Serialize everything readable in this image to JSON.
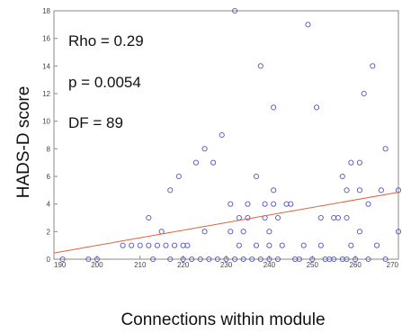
{
  "chart_data": {
    "type": "scatter",
    "xlabel": "Connections within module",
    "ylabel": "HADS-D  score",
    "xlim": [
      190,
      270
    ],
    "ylim": [
      0,
      18
    ],
    "xticks": [
      190,
      200,
      210,
      220,
      230,
      240,
      250,
      260,
      270
    ],
    "yticks": [
      0,
      2,
      4,
      6,
      8,
      10,
      12,
      14,
      16,
      18
    ],
    "grid": false,
    "annotations": [
      "Rho = 0.29",
      "p = 0.0054",
      "DF = 89"
    ],
    "points": [
      {
        "x": 192,
        "y": 0
      },
      {
        "x": 198,
        "y": 0
      },
      {
        "x": 200,
        "y": 0
      },
      {
        "x": 206,
        "y": 1
      },
      {
        "x": 208,
        "y": 1
      },
      {
        "x": 210,
        "y": 1
      },
      {
        "x": 212,
        "y": 1
      },
      {
        "x": 212,
        "y": 3
      },
      {
        "x": 213,
        "y": 0
      },
      {
        "x": 214,
        "y": 1
      },
      {
        "x": 215,
        "y": 2
      },
      {
        "x": 216,
        "y": 1
      },
      {
        "x": 217,
        "y": 5
      },
      {
        "x": 217,
        "y": 0
      },
      {
        "x": 218,
        "y": 1
      },
      {
        "x": 219,
        "y": 6
      },
      {
        "x": 220,
        "y": 1
      },
      {
        "x": 220,
        "y": 0
      },
      {
        "x": 221,
        "y": 1
      },
      {
        "x": 222,
        "y": 0
      },
      {
        "x": 223,
        "y": 7
      },
      {
        "x": 224,
        "y": 0
      },
      {
        "x": 225,
        "y": 2
      },
      {
        "x": 225,
        "y": 8
      },
      {
        "x": 226,
        "y": 0
      },
      {
        "x": 227,
        "y": 7
      },
      {
        "x": 228,
        "y": 0
      },
      {
        "x": 229,
        "y": 9
      },
      {
        "x": 230,
        "y": 0
      },
      {
        "x": 231,
        "y": 2
      },
      {
        "x": 231,
        "y": 4
      },
      {
        "x": 232,
        "y": 0
      },
      {
        "x": 232,
        "y": 18
      },
      {
        "x": 233,
        "y": 1
      },
      {
        "x": 233,
        "y": 3
      },
      {
        "x": 234,
        "y": 0
      },
      {
        "x": 234,
        "y": 2
      },
      {
        "x": 235,
        "y": 3
      },
      {
        "x": 235,
        "y": 4
      },
      {
        "x": 236,
        "y": 0
      },
      {
        "x": 237,
        "y": 6
      },
      {
        "x": 237,
        "y": 1
      },
      {
        "x": 238,
        "y": 0
      },
      {
        "x": 238,
        "y": 14
      },
      {
        "x": 239,
        "y": 4
      },
      {
        "x": 239,
        "y": 3
      },
      {
        "x": 240,
        "y": 0
      },
      {
        "x": 240,
        "y": 1
      },
      {
        "x": 240,
        "y": 2
      },
      {
        "x": 241,
        "y": 4
      },
      {
        "x": 241,
        "y": 5
      },
      {
        "x": 241,
        "y": 11
      },
      {
        "x": 242,
        "y": 3
      },
      {
        "x": 242,
        "y": 0
      },
      {
        "x": 243,
        "y": 1
      },
      {
        "x": 244,
        "y": 4
      },
      {
        "x": 245,
        "y": 4
      },
      {
        "x": 246,
        "y": 0
      },
      {
        "x": 247,
        "y": 0
      },
      {
        "x": 248,
        "y": 1
      },
      {
        "x": 249,
        "y": 17
      },
      {
        "x": 250,
        "y": 0
      },
      {
        "x": 251,
        "y": 11
      },
      {
        "x": 252,
        "y": 1
      },
      {
        "x": 252,
        "y": 3
      },
      {
        "x": 253,
        "y": 0
      },
      {
        "x": 254,
        "y": 0
      },
      {
        "x": 255,
        "y": 0
      },
      {
        "x": 255,
        "y": 3
      },
      {
        "x": 256,
        "y": 3
      },
      {
        "x": 257,
        "y": 6
      },
      {
        "x": 257,
        "y": 0
      },
      {
        "x": 258,
        "y": 0
      },
      {
        "x": 258,
        "y": 3
      },
      {
        "x": 258,
        "y": 5
      },
      {
        "x": 259,
        "y": 7
      },
      {
        "x": 259,
        "y": 1
      },
      {
        "x": 260,
        "y": 0
      },
      {
        "x": 261,
        "y": 5
      },
      {
        "x": 261,
        "y": 7
      },
      {
        "x": 261,
        "y": 2
      },
      {
        "x": 262,
        "y": 12
      },
      {
        "x": 263,
        "y": 0
      },
      {
        "x": 263,
        "y": 4
      },
      {
        "x": 264,
        "y": 14
      },
      {
        "x": 265,
        "y": 1
      },
      {
        "x": 266,
        "y": 5
      },
      {
        "x": 267,
        "y": 8
      },
      {
        "x": 267,
        "y": 0
      },
      {
        "x": 270,
        "y": 5
      },
      {
        "x": 270,
        "y": 2
      }
    ],
    "fit_line": {
      "x": [
        190,
        270
      ],
      "y": [
        0.45,
        4.85
      ]
    },
    "colors": {
      "points": "#5555bb",
      "fit_line": "#e06040",
      "axes": "#888888"
    }
  }
}
